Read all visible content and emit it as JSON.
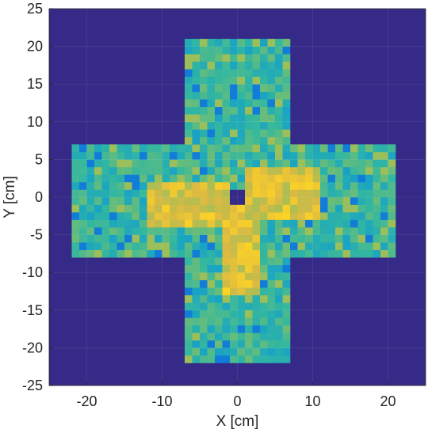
{
  "chart_data": {
    "type": "heatmap",
    "title": "",
    "xlabel": "X [cm]",
    "ylabel": "Y [cm]",
    "xlim": [
      -25,
      25
    ],
    "ylim": [
      -25,
      25
    ],
    "xticks": [
      -20,
      -10,
      0,
      10,
      20
    ],
    "yticks": [
      25,
      20,
      15,
      10,
      5,
      0,
      -5,
      -10,
      -15,
      -20,
      -25
    ],
    "xtick_labels": [
      "-20",
      "-10",
      "0",
      "10",
      "20"
    ],
    "ytick_labels": [
      "25",
      "20",
      "15",
      "10",
      "5",
      "0",
      "-5",
      "-10",
      "-15",
      "-20",
      "-25"
    ],
    "grid": true,
    "colormap": "parula",
    "cell_size_cm": 1,
    "background_value": 0,
    "regions": [
      {
        "name": "vertical arm",
        "x_range": [
          -7,
          7
        ],
        "y_range": [
          -22,
          21
        ],
        "level": "medium",
        "value": 0.55
      },
      {
        "name": "horizontal arm",
        "x_range": [
          -22,
          21
        ],
        "y_range": [
          -8,
          7
        ],
        "level": "medium",
        "value": 0.55
      },
      {
        "name": "blade right",
        "x_range": [
          1,
          11
        ],
        "y_range": [
          -3,
          4
        ],
        "level": "high",
        "value": 0.92
      },
      {
        "name": "blade left",
        "x_range": [
          -12,
          -1
        ],
        "y_range": [
          -4,
          2
        ],
        "level": "high",
        "value": 0.92
      },
      {
        "name": "blade bottom",
        "x_range": [
          -2,
          3
        ],
        "y_range": [
          -13,
          -1
        ],
        "level": "high",
        "value": 0.92
      },
      {
        "name": "center hole",
        "x_range": [
          -1,
          1
        ],
        "y_range": [
          -1,
          1
        ],
        "level": "empty",
        "value": 0
      }
    ],
    "colors": {
      "background": "#352A87",
      "low": "#0F5CDD",
      "mid": "#1AA4C3",
      "medium": "#33B7A0",
      "mid_high": "#9BBF5A",
      "high": "#F9D029",
      "max": "#F9FB0E"
    }
  }
}
